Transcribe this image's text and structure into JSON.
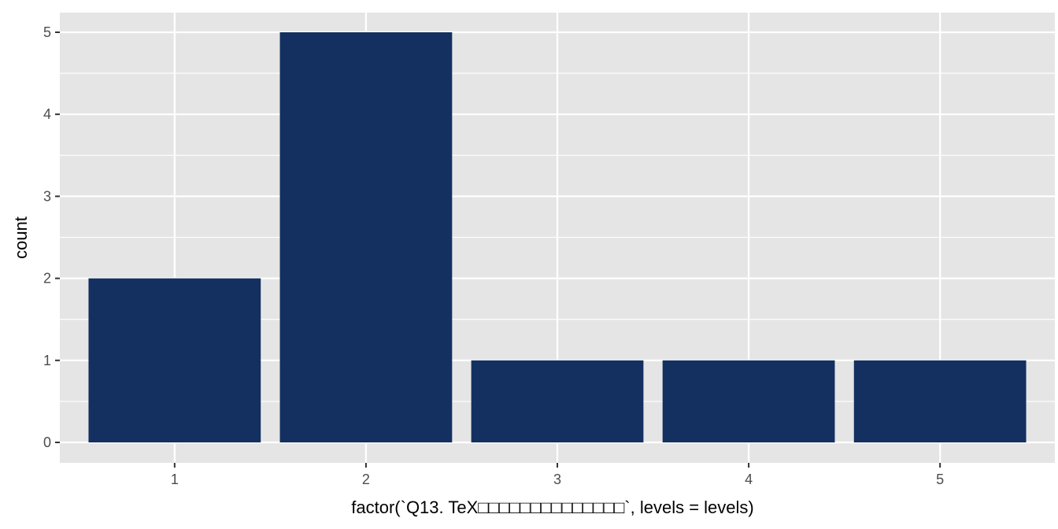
{
  "chart_data": {
    "type": "bar",
    "title": "",
    "xlabel": "factor(`Q13. TeX□□□□□□□□□□□□□□`, levels = levels)",
    "ylabel": "count",
    "categories": [
      "1",
      "2",
      "3",
      "4",
      "5"
    ],
    "values": [
      2,
      5,
      1,
      1,
      1
    ],
    "ylim": [
      0,
      5
    ],
    "yticks": [
      0,
      1,
      2,
      3,
      4,
      5
    ],
    "grid": true,
    "legend": "none",
    "colors": {
      "bar": "#133060",
      "panel": "#e5e5e5",
      "grid": "#ffffff"
    }
  }
}
